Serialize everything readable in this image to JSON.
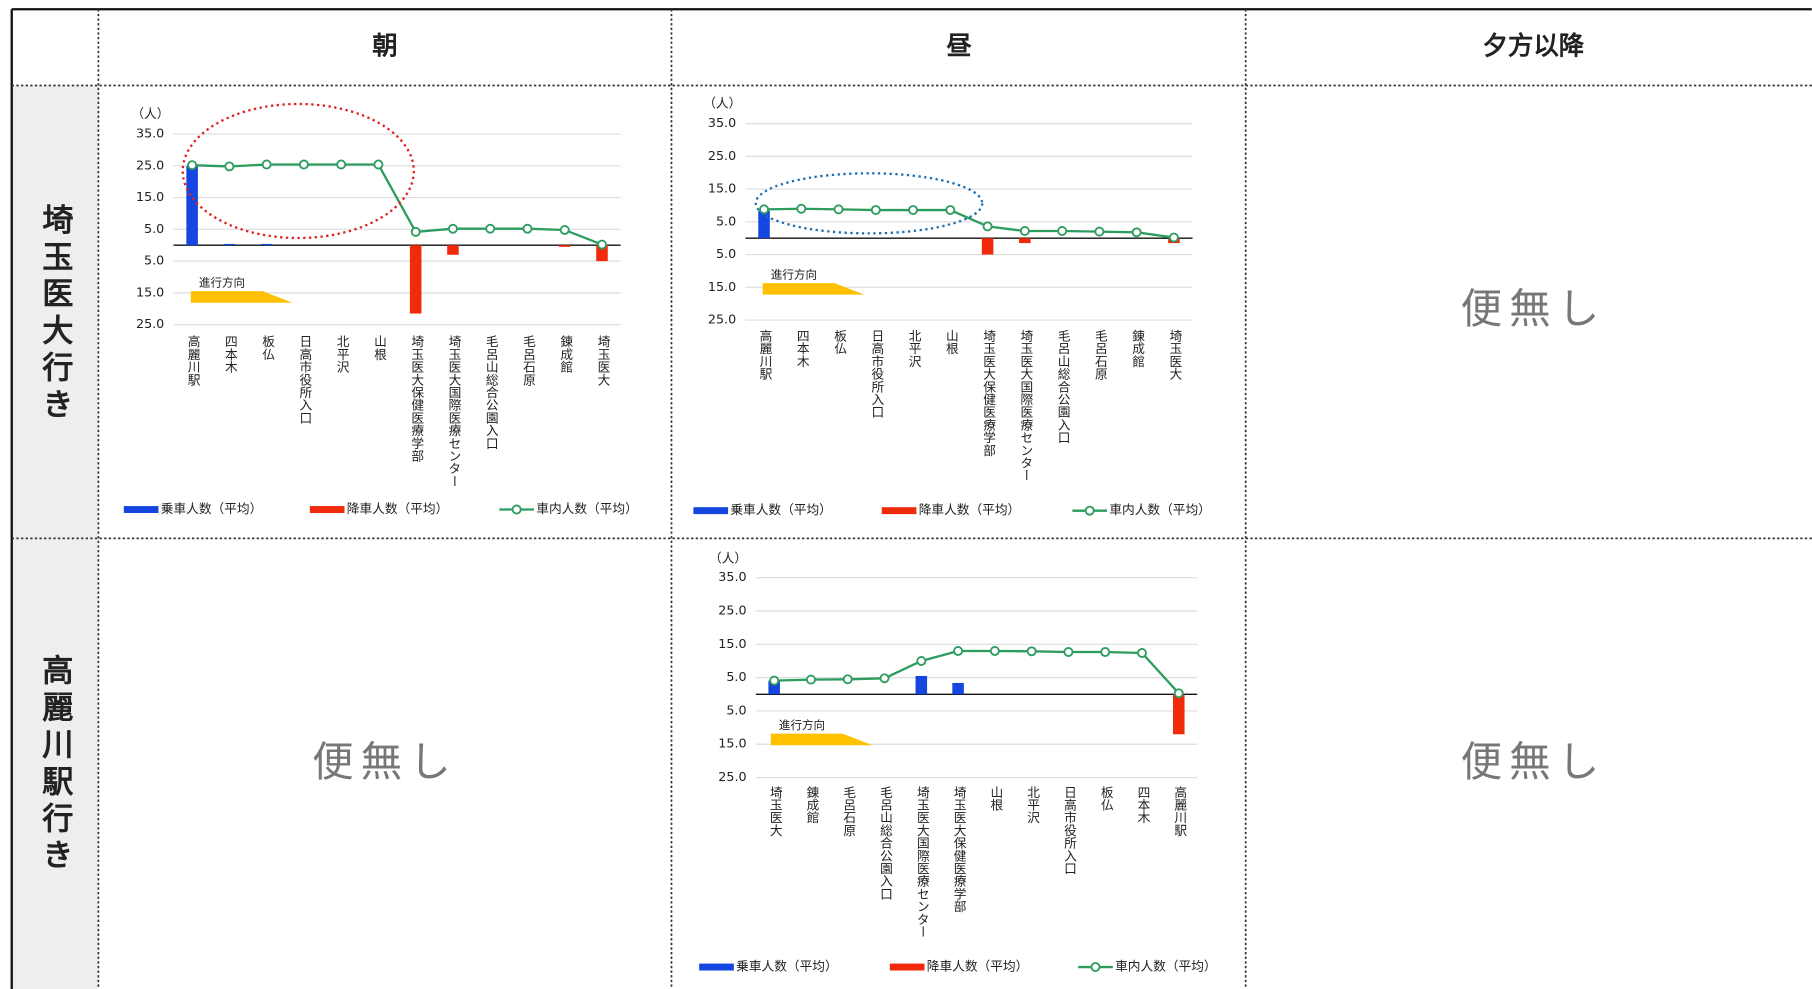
{
  "table": {
    "column_headers": [
      "朝",
      "昼",
      "夕方以降"
    ],
    "row_headers": [
      "埼玉医大行き",
      "高麗川駅行き"
    ],
    "no_service_cells": [
      "便無し",
      "便無し",
      "便無し"
    ]
  },
  "chart_data": [
    {
      "type": "combo",
      "y_label": "（人）",
      "direction_label": "進行方向",
      "grid": true,
      "categories": [
        "高麗川駅",
        "四本木",
        "板仏",
        "日高市役所入口",
        "北平沢",
        "山根",
        "埼玉医大保健医療学部",
        "埼玉医大国際医療センター",
        "毛呂山総合公園入口",
        "毛呂石原",
        "錬成館",
        "埼玉医大"
      ],
      "series": [
        {
          "name": "乗車人数（平均）",
          "type": "bar",
          "color": "#1547e0",
          "values": [
            25,
            0.4,
            0.4,
            0,
            0,
            0,
            0,
            0,
            0,
            0,
            0,
            0
          ]
        },
        {
          "name": "降車人数（平均）",
          "type": "bar",
          "color": "#f02a0a",
          "values": [
            0,
            0,
            0,
            0,
            0,
            0,
            -21.5,
            -3,
            0,
            0,
            -0.5,
            -5
          ]
        },
        {
          "name": "車内人数（平均）",
          "type": "line",
          "color": "#2e9c5f",
          "values": [
            25.2,
            24.8,
            25.4,
            25.4,
            25.4,
            25.4,
            4.2,
            5.2,
            5.2,
            5.2,
            4.8,
            0.2
          ]
        }
      ],
      "ylim": [
        -25,
        35
      ],
      "yticks": [
        {
          "value": 35,
          "label": "35.0"
        },
        {
          "value": 25,
          "label": "25.0"
        },
        {
          "value": 15,
          "label": "15.0"
        },
        {
          "value": 5,
          "label": "5.0"
        },
        {
          "value": -5,
          "label": "5.0"
        },
        {
          "value": -15,
          "label": "15.0"
        },
        {
          "value": -25,
          "label": "25.0"
        }
      ]
    },
    {
      "type": "combo",
      "y_label": "（人）",
      "direction_label": "進行方向",
      "grid": true,
      "categories": [
        "高麗川駅",
        "四本木",
        "板仏",
        "日高市役所入口",
        "北平沢",
        "山根",
        "埼玉医大保健医療学部",
        "埼玉医大国際医療センター",
        "毛呂山総合公園入口",
        "毛呂石原",
        "錬成館",
        "埼玉医大"
      ],
      "series": [
        {
          "name": "乗車人数（平均）",
          "type": "bar",
          "color": "#1547e0",
          "values": [
            8.4,
            0,
            0,
            0,
            0,
            0,
            0,
            0,
            0,
            0,
            0,
            0
          ]
        },
        {
          "name": "降車人数（平均）",
          "type": "bar",
          "color": "#f02a0a",
          "values": [
            0,
            0,
            0,
            0,
            0,
            0,
            -5,
            -1.5,
            0,
            0,
            0,
            -1.5
          ]
        },
        {
          "name": "車内人数（平均）",
          "type": "line",
          "color": "#2e9c5f",
          "values": [
            8.8,
            9,
            8.8,
            8.6,
            8.6,
            8.6,
            3.6,
            2.2,
            2.2,
            2,
            1.8,
            0.2
          ]
        }
      ],
      "ylim": [
        -25,
        35
      ],
      "yticks": [
        {
          "value": 35,
          "label": "35.0"
        },
        {
          "value": 25,
          "label": "25.0"
        },
        {
          "value": 15,
          "label": "15.0"
        },
        {
          "value": 5,
          "label": "5.0"
        },
        {
          "value": -5,
          "label": "5.0"
        },
        {
          "value": -15,
          "label": "15.0"
        },
        {
          "value": -25,
          "label": "25.0"
        }
      ]
    },
    {
      "type": "combo",
      "y_label": "（人）",
      "direction_label": "進行方向",
      "grid": true,
      "categories": [
        "埼玉医大",
        "錬成館",
        "毛呂石原",
        "毛呂山総合公園入口",
        "埼玉医大国際医療センター",
        "埼玉医大保健医療学部",
        "山根",
        "北平沢",
        "日高市役所入口",
        "板仏",
        "四本木",
        "高麗川駅"
      ],
      "series": [
        {
          "name": "乗車人数（平均）",
          "type": "bar",
          "color": "#1547e0",
          "values": [
            4.1,
            0,
            0,
            0,
            5.5,
            3.4,
            0,
            0,
            0,
            0,
            0,
            0
          ]
        },
        {
          "name": "降車人数（平均）",
          "type": "bar",
          "color": "#f02a0a",
          "values": [
            0,
            0,
            0,
            0,
            0,
            0,
            0,
            0,
            0,
            0,
            0,
            -12
          ]
        },
        {
          "name": "車内人数（平均）",
          "type": "line",
          "color": "#2e9c5f",
          "values": [
            4.1,
            4.4,
            4.5,
            4.8,
            10,
            13,
            13,
            12.9,
            12.7,
            12.7,
            12.4,
            0.3
          ]
        }
      ],
      "ylim": [
        -25,
        35
      ],
      "yticks": [
        {
          "value": 35,
          "label": "35.0"
        },
        {
          "value": 25,
          "label": "25.0"
        },
        {
          "value": 15,
          "label": "15.0"
        },
        {
          "value": 5,
          "label": "5.0"
        },
        {
          "value": -5,
          "label": "5.0"
        },
        {
          "value": -15,
          "label": "15.0"
        },
        {
          "value": -25,
          "label": "25.0"
        }
      ]
    }
  ]
}
